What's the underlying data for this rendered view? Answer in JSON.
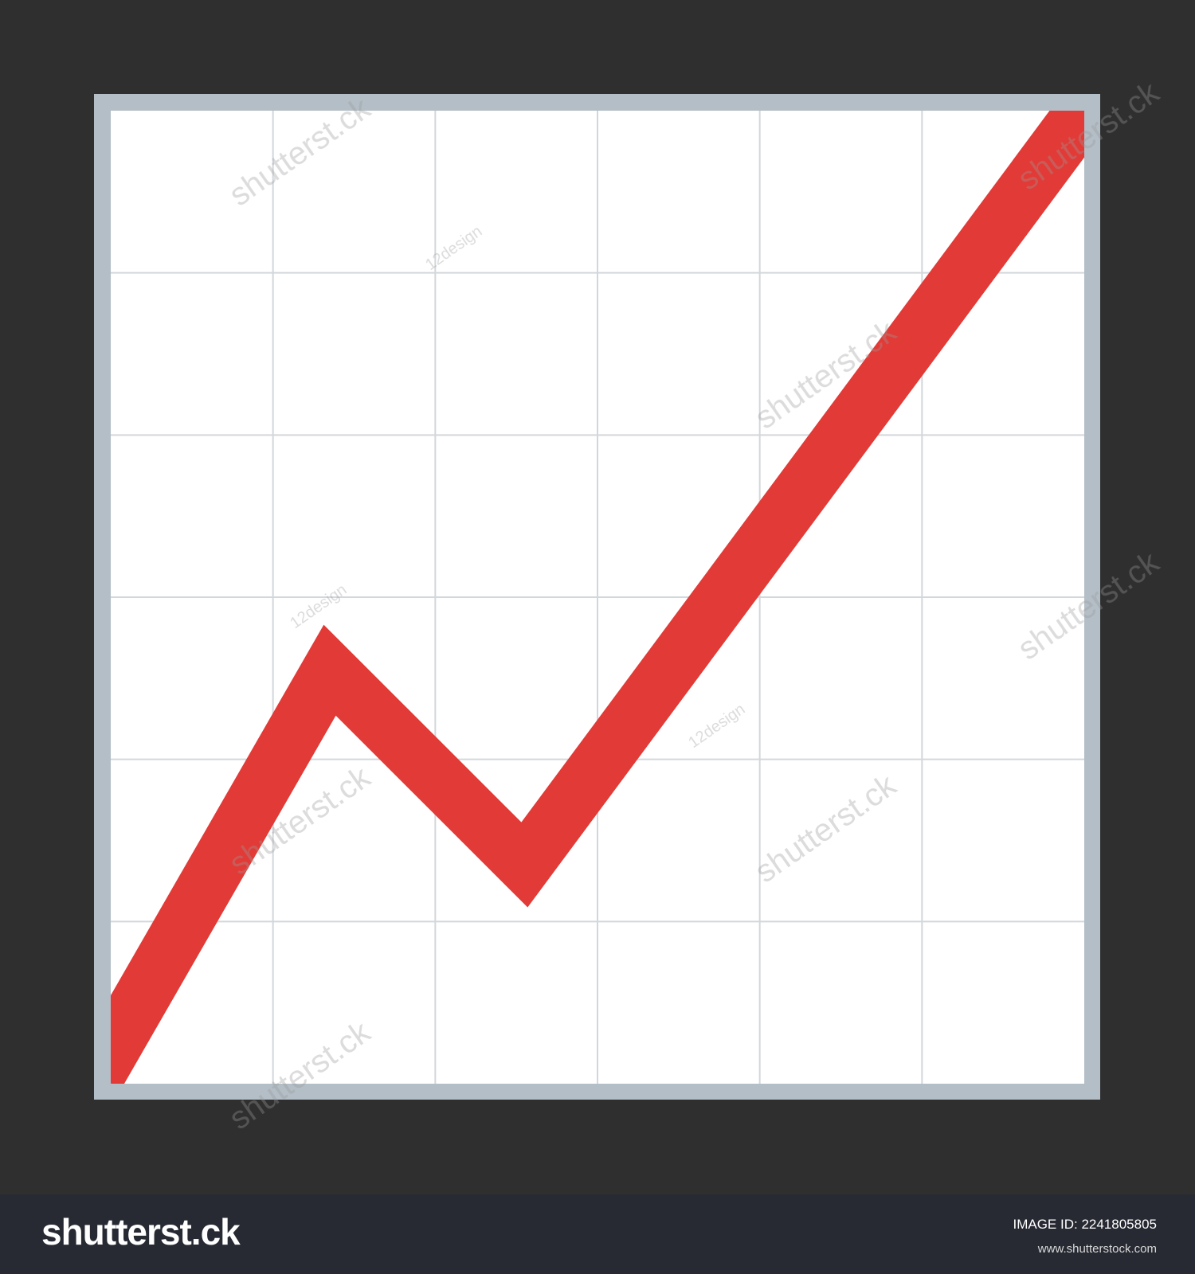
{
  "chart_data": {
    "type": "line",
    "title": "",
    "xlabel": "",
    "ylabel": "",
    "grid": true,
    "x": [
      0,
      1.35,
      2.55,
      6
    ],
    "y": [
      0.2,
      2.55,
      1.35,
      6
    ],
    "xlim": [
      0,
      6
    ],
    "ylim": [
      0,
      6
    ],
    "grid_divisions": 6,
    "colors": {
      "line": "#e23a36",
      "plot_background": "#ffffff",
      "frame": "#b3bec6",
      "gridline": "#d3d7db",
      "outer_background": "#2f2f2f"
    }
  },
  "footer": {
    "brand": "shutterst.ck",
    "image_id": "IMAGE ID: 2241805805",
    "url": "www.shutterstock.com"
  },
  "watermark": {
    "brand_text": "shutterst.ck",
    "author_text": "12design"
  }
}
